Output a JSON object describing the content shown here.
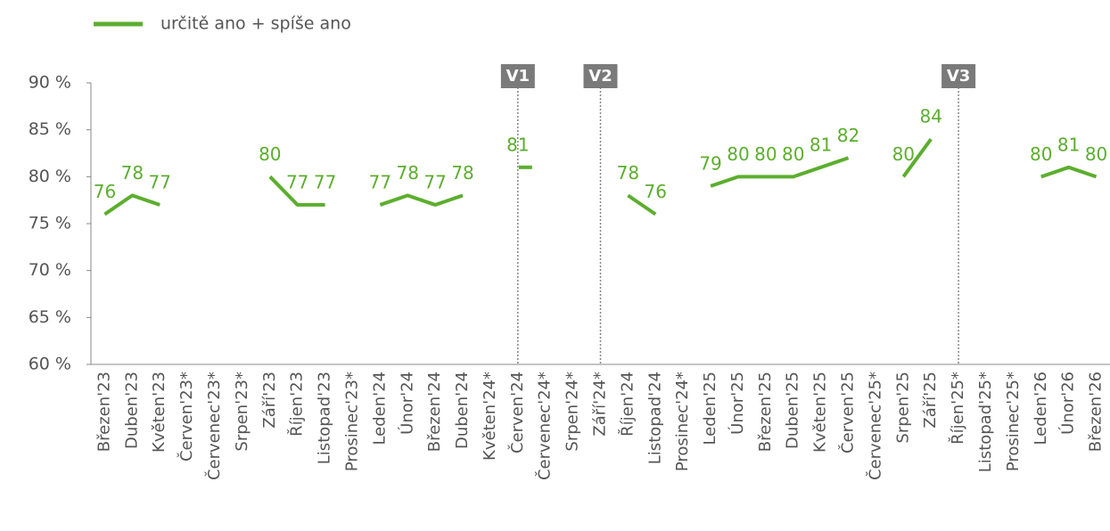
{
  "chart_data": {
    "type": "line",
    "categories": [
      "Březen'23",
      "Duben'23",
      "Květen'23",
      "Červen'23*",
      "Červenec'23*",
      "Srpen'23*",
      "Září'23",
      "Říjen'23",
      "Listopad'23",
      "Prosinec'23*",
      "Leden'24",
      "Únor'24",
      "Březen'24",
      "Duben'24",
      "Květen'24*",
      "Červen'24",
      "Červenec'24*",
      "Srpen'24*",
      "Září'24*",
      "Říjen'24",
      "Listopad'24",
      "Prosinec'24*",
      "Leden'25",
      "Únor'25",
      "Březen'25",
      "Duben'25",
      "Květen'25",
      "Červen'25",
      "Červenec'25*",
      "Srpen'25",
      "Září'25",
      "Říjen'25*",
      "Listopad'25*",
      "Prosinec'25*",
      "Leden'26",
      "Únor'26",
      "Březen'26"
    ],
    "series": [
      {
        "name": "určitě ano + spíše ano",
        "color": "#5cae2e",
        "values": [
          76,
          78,
          77,
          null,
          null,
          null,
          80,
          77,
          77,
          null,
          77,
          78,
          77,
          78,
          null,
          81,
          null,
          null,
          null,
          78,
          76,
          null,
          79,
          80,
          80,
          80,
          81,
          82,
          null,
          80,
          84,
          null,
          null,
          null,
          80,
          81,
          80
        ]
      }
    ],
    "ylim": [
      60,
      90
    ],
    "yticks": [
      {
        "value": 60,
        "label": "60 %"
      },
      {
        "value": 65,
        "label": "65 %"
      },
      {
        "value": 70,
        "label": "70 %"
      },
      {
        "value": 75,
        "label": "75 %"
      },
      {
        "value": 80,
        "label": "80 %"
      },
      {
        "value": 85,
        "label": "85 %"
      },
      {
        "value": 90,
        "label": "90 %"
      }
    ],
    "markers": [
      {
        "label": "V1",
        "category": "Červen'24"
      },
      {
        "label": "V2",
        "category": "Září'24*"
      },
      {
        "label": "V3",
        "category": "Říjen'25*"
      }
    ],
    "legend": "top-left"
  }
}
